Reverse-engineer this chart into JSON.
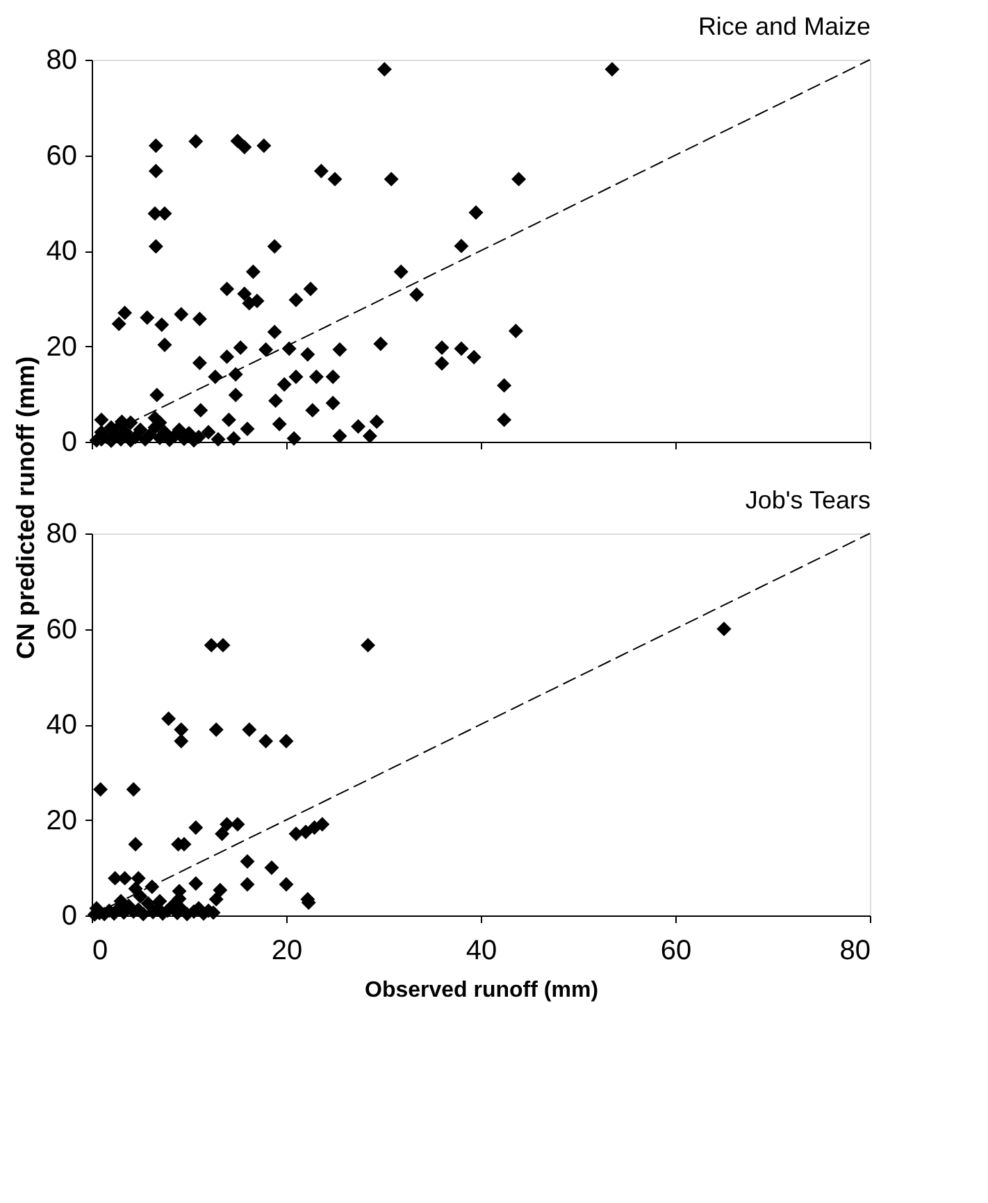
{
  "chart_data": [
    {
      "type": "scatter",
      "title": "Rice and Maize",
      "ylabel": "CN predicted runoff (mm)",
      "xlim": [
        0,
        80
      ],
      "xticks": [
        0,
        20,
        40,
        60,
        80
      ],
      "ylim": [
        0,
        80
      ],
      "yticks": [
        0,
        20,
        40,
        60,
        80
      ],
      "tick_labels": "y",
      "grid": false,
      "marker": "diamond",
      "series": [
        {
          "color": "#000000",
          "x": [
            30.1,
            53.5,
            6.6,
            10.7,
            15,
            15.7,
            17.7,
            6.6,
            23.6,
            25,
            6.5,
            7.5,
            6.6,
            18.8,
            16.6,
            13.9,
            15.7,
            17,
            16.2,
            21,
            22.5,
            3.4,
            2.8,
            5.7,
            7.2,
            9.2,
            11.1,
            7.5,
            18.8,
            15.3,
            17.9,
            20.3,
            13.9,
            11.1,
            22.2,
            25.5,
            12.7,
            14.8,
            19.8,
            21,
            23.1,
            24.8,
            14.8,
            6.7,
            24.8,
            18.9,
            11.2,
            14.1,
            16,
            19.3,
            22.7,
            25.5,
            14.6,
            1,
            3.1,
            20.8,
            27.4,
            30.8,
            43.9,
            39.5,
            38,
            31.8,
            33.4,
            29.7,
            36,
            36,
            38,
            39.3,
            43.6,
            42.4,
            42.4,
            28.6,
            29.3,
            0.5,
            1,
            1.5,
            2,
            2.5,
            3,
            3.5,
            4,
            4.5,
            5,
            5.5,
            6,
            6.5,
            7,
            7.5,
            8,
            8.5,
            9,
            9.5,
            10,
            10.5,
            11,
            12,
            13,
            2,
            4,
            6.5,
            7,
            1,
            3
          ],
          "values": [
            78,
            78,
            62,
            62.9,
            63,
            61.7,
            62,
            56.7,
            56.7,
            55,
            47.8,
            47.8,
            40.9,
            40.9,
            35.6,
            32,
            31,
            29.5,
            29,
            29.7,
            32,
            27,
            24.7,
            26,
            24.5,
            26.7,
            25.7,
            20.3,
            23,
            19.7,
            19.3,
            19.5,
            17.8,
            16.5,
            18.3,
            19.3,
            13.6,
            14.1,
            12,
            13.6,
            13.6,
            13.6,
            9.8,
            9.8,
            8.1,
            8.6,
            6.6,
            4.6,
            2.7,
            3.7,
            6.6,
            1.2,
            0.7,
            4.6,
            4.2,
            0.7,
            3.2,
            55,
            55,
            48,
            41,
            35.6,
            30.8,
            20.5,
            19.7,
            16.4,
            19.5,
            17.7,
            23.2,
            11.8,
            4.6,
            1.2,
            4.2,
            0.3,
            0.5,
            1,
            0.2,
            1.5,
            0.5,
            2,
            0.3,
            1,
            2.5,
            0.5,
            1.5,
            3,
            0.8,
            2,
            0.4,
            1.2,
            2.5,
            0.6,
            1.8,
            0.3,
            1,
            2,
            0.5,
            3,
            4,
            5,
            4,
            2,
            3.5
          ]
        },
        {
          "type": "line",
          "color": "#000000",
          "line_style": "dashed",
          "marker": "none",
          "x": [
            0,
            80
          ],
          "values": [
            0,
            80
          ]
        }
      ]
    },
    {
      "type": "scatter",
      "title": "Job's Tears",
      "xlabel": "Observed runoff (mm)",
      "xlim": [
        0,
        80
      ],
      "xticks": [
        0,
        20,
        40,
        60,
        80
      ],
      "ylim": [
        0,
        80
      ],
      "yticks": [
        0,
        20,
        40,
        60,
        80
      ],
      "grid": false,
      "marker": "diamond",
      "series": [
        {
          "color": "#000000",
          "x": [
            12.3,
            13.5,
            28.4,
            65,
            7.9,
            9.2,
            9.2,
            12.8,
            16.2,
            17.9,
            20,
            0.9,
            4.3,
            4.5,
            8.9,
            9.5,
            10.7,
            13.4,
            13.9,
            15,
            21,
            22,
            22.9,
            23.7,
            16,
            18.5,
            16,
            20,
            22.2,
            22.3,
            2.4,
            3.4,
            4.8,
            6.2,
            4.5,
            9,
            10.7,
            13.2,
            12.8,
            0.3,
            0.8,
            1.3,
            1.8,
            2.3,
            2.8,
            3.3,
            3.8,
            4.3,
            4.8,
            5.3,
            5.8,
            6.3,
            6.8,
            7.3,
            7.8,
            8.3,
            8.8,
            9.3,
            9.8,
            10.5,
            11,
            11.5,
            12,
            12.5,
            3,
            5,
            7,
            9,
            0.5
          ],
          "values": [
            56.6,
            56.6,
            56.6,
            60,
            41.2,
            38.9,
            36.5,
            38.9,
            38.9,
            36.5,
            36.5,
            26.4,
            26.4,
            14.9,
            14.9,
            14.9,
            18.4,
            17.1,
            19.1,
            19.1,
            17.1,
            17.5,
            18.4,
            19.1,
            11.3,
            10,
            6.5,
            6.5,
            3.4,
            2.7,
            7.8,
            7.8,
            7.8,
            6,
            5.6,
            5.1,
            6.7,
            5.3,
            3.4,
            0.2,
            0.5,
            0.3,
            1,
            0.4,
            1.5,
            0.6,
            2,
            0.8,
            1.2,
            0.3,
            2.5,
            0.7,
            1.5,
            0.4,
            1,
            2,
            0.5,
            1.2,
            0.3,
            0.8,
            1.5,
            0.4,
            1,
            0.6,
            3,
            4,
            3,
            3.5,
            1.5
          ]
        },
        {
          "type": "line",
          "color": "#000000",
          "line_style": "dashed",
          "marker": "none",
          "x": [
            0,
            80
          ],
          "values": [
            0,
            80
          ]
        }
      ]
    }
  ]
}
